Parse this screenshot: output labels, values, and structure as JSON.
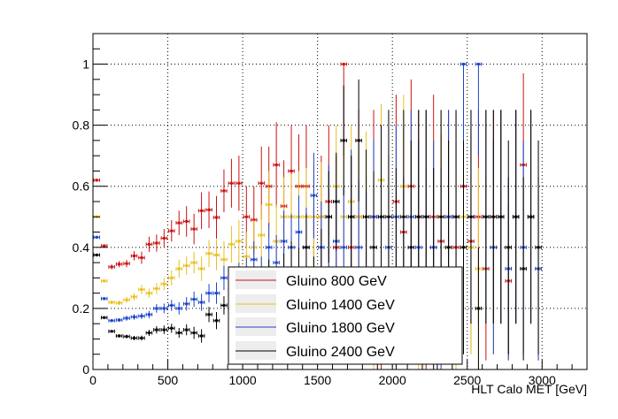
{
  "chart_data": {
    "type": "scatter",
    "title": "",
    "xlabel": "HLT Calo MET [GeV]",
    "ylabel": "",
    "xlim": [
      0,
      3300
    ],
    "ylim": [
      0,
      1.1
    ],
    "grid": true,
    "legend_position": "bottom-center",
    "xticks": [
      "0",
      "500",
      "1000",
      "1500",
      "2000",
      "2500",
      "3000"
    ],
    "yticks": [
      "0",
      "0.2",
      "0.4",
      "0.6",
      "0.8",
      "1"
    ],
    "series": [
      {
        "name": "Gluino 800 GeV",
        "color": "#cc1111",
        "points": [
          [
            25,
            0.62,
            0.005
          ],
          [
            75,
            0.405,
            0.005
          ],
          [
            125,
            0.336,
            0.008
          ],
          [
            175,
            0.345,
            0.01
          ],
          [
            225,
            0.347,
            0.012
          ],
          [
            275,
            0.372,
            0.015
          ],
          [
            325,
            0.366,
            0.02
          ],
          [
            375,
            0.41,
            0.025
          ],
          [
            425,
            0.414,
            0.028
          ],
          [
            475,
            0.43,
            0.03
          ],
          [
            525,
            0.454,
            0.035
          ],
          [
            575,
            0.48,
            0.04
          ],
          [
            625,
            0.485,
            0.05
          ],
          [
            675,
            0.46,
            0.05
          ],
          [
            725,
            0.52,
            0.06
          ],
          [
            775,
            0.523,
            0.06
          ],
          [
            825,
            0.498,
            0.07
          ],
          [
            875,
            0.585,
            0.07
          ],
          [
            925,
            0.61,
            0.08
          ],
          [
            975,
            0.61,
            0.09
          ],
          [
            1025,
            0.5,
            0.1
          ],
          [
            1075,
            0.49,
            0.11
          ],
          [
            1125,
            0.61,
            0.12
          ],
          [
            1175,
            0.6,
            0.13
          ],
          [
            1225,
            0.67,
            0.14
          ],
          [
            1275,
            0.535,
            0.15
          ],
          [
            1325,
            0.65,
            0.15
          ],
          [
            1375,
            0.6,
            0.17
          ],
          [
            1425,
            0.6,
            0.2
          ],
          [
            1475,
            0.33,
            0.2
          ],
          [
            1525,
            0.5,
            0.2
          ],
          [
            1575,
            0.55,
            0.25
          ],
          [
            1625,
            0.4,
            0.3
          ],
          [
            1675,
            1.0,
            0.3
          ],
          [
            1725,
            0.4,
            0.3
          ],
          [
            1775,
            0.5,
            0.35
          ],
          [
            1825,
            0.33,
            0.3
          ],
          [
            1875,
            0.5,
            0.35
          ],
          [
            1925,
            0.29,
            0.3
          ],
          [
            1975,
            0.33,
            0.3
          ],
          [
            2025,
            0.55,
            0.35
          ],
          [
            2075,
            0.45,
            0.35
          ],
          [
            2125,
            0.6,
            0.35
          ],
          [
            2175,
            0.5,
            0.35
          ],
          [
            2225,
            0.33,
            0.33
          ],
          [
            2275,
            0.5,
            0.4
          ],
          [
            2325,
            0.42,
            0.35
          ],
          [
            2375,
            0.5,
            0.35
          ],
          [
            2425,
            0.4,
            0.35
          ],
          [
            2475,
            0.6,
            0.4
          ],
          [
            2525,
            0.42,
            0.35
          ],
          [
            2575,
            0.5,
            0.35
          ],
          [
            2625,
            0.33,
            0.3
          ],
          [
            2675,
            0.5,
            0.35
          ],
          [
            2725,
            0.5,
            0.35
          ],
          [
            2775,
            0.29,
            0.25
          ],
          [
            2825,
            0.5,
            0.35
          ],
          [
            2875,
            0.67,
            0.3
          ],
          [
            2925,
            0.5,
            0.35
          ],
          [
            2975,
            0.33,
            0.3
          ]
        ]
      },
      {
        "name": "Gluino 1400 GeV",
        "color": "#e8c020",
        "points": [
          [
            25,
            0.5,
            0.005
          ],
          [
            75,
            0.29,
            0.005
          ],
          [
            125,
            0.22,
            0.006
          ],
          [
            175,
            0.218,
            0.008
          ],
          [
            225,
            0.228,
            0.01
          ],
          [
            275,
            0.238,
            0.012
          ],
          [
            325,
            0.262,
            0.015
          ],
          [
            375,
            0.25,
            0.015
          ],
          [
            425,
            0.265,
            0.018
          ],
          [
            475,
            0.28,
            0.02
          ],
          [
            525,
            0.3,
            0.025
          ],
          [
            575,
            0.33,
            0.03
          ],
          [
            625,
            0.34,
            0.03
          ],
          [
            675,
            0.35,
            0.035
          ],
          [
            725,
            0.33,
            0.04
          ],
          [
            775,
            0.38,
            0.045
          ],
          [
            825,
            0.375,
            0.05
          ],
          [
            875,
            0.36,
            0.06
          ],
          [
            925,
            0.41,
            0.06
          ],
          [
            975,
            0.42,
            0.07
          ],
          [
            1025,
            0.37,
            0.08
          ],
          [
            1075,
            0.4,
            0.09
          ],
          [
            1125,
            0.44,
            0.1
          ],
          [
            1175,
            0.54,
            0.11
          ],
          [
            1225,
            0.42,
            0.12
          ],
          [
            1275,
            0.5,
            0.13
          ],
          [
            1325,
            0.5,
            0.14
          ],
          [
            1375,
            0.5,
            0.15
          ],
          [
            1425,
            0.5,
            0.16
          ],
          [
            1475,
            0.5,
            0.17
          ],
          [
            1525,
            0.5,
            0.18
          ],
          [
            1575,
            0.33,
            0.2
          ],
          [
            1625,
            0.6,
            0.2
          ],
          [
            1675,
            0.5,
            0.22
          ],
          [
            1725,
            0.55,
            0.25
          ],
          [
            1775,
            0.5,
            0.25
          ],
          [
            1825,
            0.5,
            0.28
          ],
          [
            1875,
            0.29,
            0.3
          ],
          [
            1925,
            0.62,
            0.25
          ],
          [
            1975,
            0.4,
            0.3
          ],
          [
            2025,
            0.5,
            0.3
          ],
          [
            2075,
            0.6,
            0.3
          ],
          [
            2125,
            0.5,
            0.35
          ],
          [
            2175,
            0.33,
            0.33
          ],
          [
            2225,
            0.5,
            0.35
          ],
          [
            2275,
            0.4,
            0.35
          ],
          [
            2325,
            0.5,
            0.35
          ],
          [
            2375,
            0.4,
            0.35
          ],
          [
            2425,
            0.33,
            0.33
          ],
          [
            2475,
            0.5,
            0.35
          ],
          [
            2525,
            0.4,
            0.35
          ],
          [
            2575,
            0.33,
            0.33
          ],
          [
            2625,
            0.5,
            0.35
          ],
          [
            2675,
            0.4,
            0.35
          ],
          [
            2725,
            0.5,
            0.35
          ],
          [
            2775,
            0.33,
            0.3
          ],
          [
            2825,
            0.5,
            0.35
          ],
          [
            2875,
            0.33,
            0.3
          ],
          [
            2925,
            0.5,
            0.35
          ],
          [
            2975,
            0.33,
            0.3
          ]
        ]
      },
      {
        "name": "Gluino 1800 GeV",
        "color": "#1a44cc",
        "points": [
          [
            25,
            0.433,
            0.005
          ],
          [
            75,
            0.232,
            0.005
          ],
          [
            125,
            0.16,
            0.005
          ],
          [
            175,
            0.162,
            0.006
          ],
          [
            225,
            0.168,
            0.008
          ],
          [
            275,
            0.172,
            0.009
          ],
          [
            325,
            0.175,
            0.01
          ],
          [
            375,
            0.18,
            0.012
          ],
          [
            425,
            0.2,
            0.014
          ],
          [
            475,
            0.2,
            0.016
          ],
          [
            525,
            0.21,
            0.018
          ],
          [
            575,
            0.2,
            0.02
          ],
          [
            625,
            0.215,
            0.022
          ],
          [
            675,
            0.23,
            0.025
          ],
          [
            725,
            0.22,
            0.028
          ],
          [
            775,
            0.25,
            0.03
          ],
          [
            825,
            0.25,
            0.035
          ],
          [
            875,
            0.3,
            0.04
          ],
          [
            925,
            0.27,
            0.045
          ],
          [
            975,
            0.3,
            0.05
          ],
          [
            1025,
            0.31,
            0.055
          ],
          [
            1075,
            0.36,
            0.06
          ],
          [
            1125,
            0.3,
            0.07
          ],
          [
            1175,
            0.4,
            0.08
          ],
          [
            1225,
            0.35,
            0.09
          ],
          [
            1275,
            0.42,
            0.1
          ],
          [
            1325,
            0.4,
            0.11
          ],
          [
            1375,
            0.45,
            0.12
          ],
          [
            1425,
            0.4,
            0.13
          ],
          [
            1475,
            0.57,
            0.14
          ],
          [
            1525,
            0.4,
            0.15
          ],
          [
            1575,
            0.5,
            0.17
          ],
          [
            1625,
            0.42,
            0.18
          ],
          [
            1675,
            0.4,
            0.2
          ],
          [
            1725,
            0.5,
            0.22
          ],
          [
            1775,
            0.4,
            0.22
          ],
          [
            1825,
            0.33,
            0.25
          ],
          [
            1875,
            0.5,
            0.25
          ],
          [
            1925,
            0.5,
            0.3
          ],
          [
            1975,
            0.4,
            0.3
          ],
          [
            2025,
            0.5,
            0.3
          ],
          [
            2075,
            0.33,
            0.3
          ],
          [
            2125,
            0.5,
            0.35
          ],
          [
            2175,
            0.4,
            0.35
          ],
          [
            2225,
            0.5,
            0.35
          ],
          [
            2275,
            0.4,
            0.35
          ],
          [
            2325,
            0.33,
            0.33
          ],
          [
            2375,
            0.5,
            0.35
          ],
          [
            2425,
            0.5,
            0.35
          ],
          [
            2475,
            1.0,
            0.3
          ],
          [
            2525,
            0.5,
            0.35
          ],
          [
            2575,
            1.0,
            0.3
          ],
          [
            2625,
            0.5,
            0.35
          ],
          [
            2675,
            0.4,
            0.35
          ],
          [
            2725,
            0.5,
            0.35
          ],
          [
            2775,
            0.33,
            0.3
          ],
          [
            2825,
            0.5,
            0.35
          ],
          [
            2875,
            0.4,
            0.35
          ],
          [
            2925,
            0.5,
            0.35
          ],
          [
            2975,
            0.33,
            0.3
          ]
        ]
      },
      {
        "name": "Gluino 2400 GeV",
        "color": "#000000",
        "points": [
          [
            25,
            0.375,
            0.005
          ],
          [
            75,
            0.17,
            0.004
          ],
          [
            125,
            0.125,
            0.004
          ],
          [
            175,
            0.11,
            0.005
          ],
          [
            225,
            0.108,
            0.006
          ],
          [
            275,
            0.103,
            0.007
          ],
          [
            325,
            0.103,
            0.008
          ],
          [
            375,
            0.12,
            0.01
          ],
          [
            425,
            0.13,
            0.012
          ],
          [
            475,
            0.13,
            0.014
          ],
          [
            525,
            0.135,
            0.015
          ],
          [
            575,
            0.12,
            0.016
          ],
          [
            625,
            0.13,
            0.018
          ],
          [
            675,
            0.12,
            0.02
          ],
          [
            725,
            0.11,
            0.022
          ],
          [
            775,
            0.18,
            0.025
          ],
          [
            825,
            0.16,
            0.028
          ],
          [
            875,
            0.21,
            0.03
          ],
          [
            925,
            0.2,
            0.035
          ],
          [
            975,
            0.2,
            0.04
          ],
          [
            1025,
            0.2,
            0.045
          ],
          [
            1075,
            0.25,
            0.05
          ],
          [
            1125,
            0.27,
            0.055
          ],
          [
            1175,
            0.3,
            0.06
          ],
          [
            1225,
            0.25,
            0.07
          ],
          [
            1275,
            0.3,
            0.08
          ],
          [
            1325,
            0.33,
            0.09
          ],
          [
            1375,
            0.3,
            0.1
          ],
          [
            1425,
            0.4,
            0.11
          ],
          [
            1475,
            0.25,
            0.12
          ],
          [
            1525,
            0.33,
            0.13
          ],
          [
            1575,
            0.5,
            0.15
          ],
          [
            1625,
            0.55,
            0.16
          ],
          [
            1675,
            0.75,
            0.18
          ],
          [
            1725,
            0.5,
            0.2
          ],
          [
            1775,
            0.75,
            0.2
          ],
          [
            1825,
            0.5,
            0.22
          ],
          [
            1875,
            0.4,
            0.25
          ],
          [
            1925,
            0.5,
            0.3
          ],
          [
            1975,
            0.5,
            0.35
          ],
          [
            2025,
            0.33,
            0.33
          ],
          [
            2075,
            0.5,
            0.35
          ],
          [
            2125,
            0.4,
            0.35
          ],
          [
            2175,
            0.5,
            0.35
          ],
          [
            2225,
            0.5,
            0.35
          ],
          [
            2275,
            0.33,
            0.33
          ],
          [
            2325,
            0.5,
            0.35
          ],
          [
            2375,
            0.4,
            0.35
          ],
          [
            2425,
            0.5,
            0.35
          ],
          [
            2475,
            0.4,
            0.35
          ],
          [
            2525,
            0.5,
            0.35
          ],
          [
            2575,
            0.2,
            0.2
          ],
          [
            2625,
            0.5,
            0.35
          ],
          [
            2675,
            0.5,
            0.35
          ],
          [
            2725,
            0.5,
            0.35
          ],
          [
            2775,
            0.4,
            0.35
          ],
          [
            2825,
            0.5,
            0.35
          ],
          [
            2875,
            0.33,
            0.3
          ],
          [
            2925,
            0.5,
            0.35
          ],
          [
            2975,
            0.4,
            0.35
          ]
        ]
      }
    ]
  }
}
